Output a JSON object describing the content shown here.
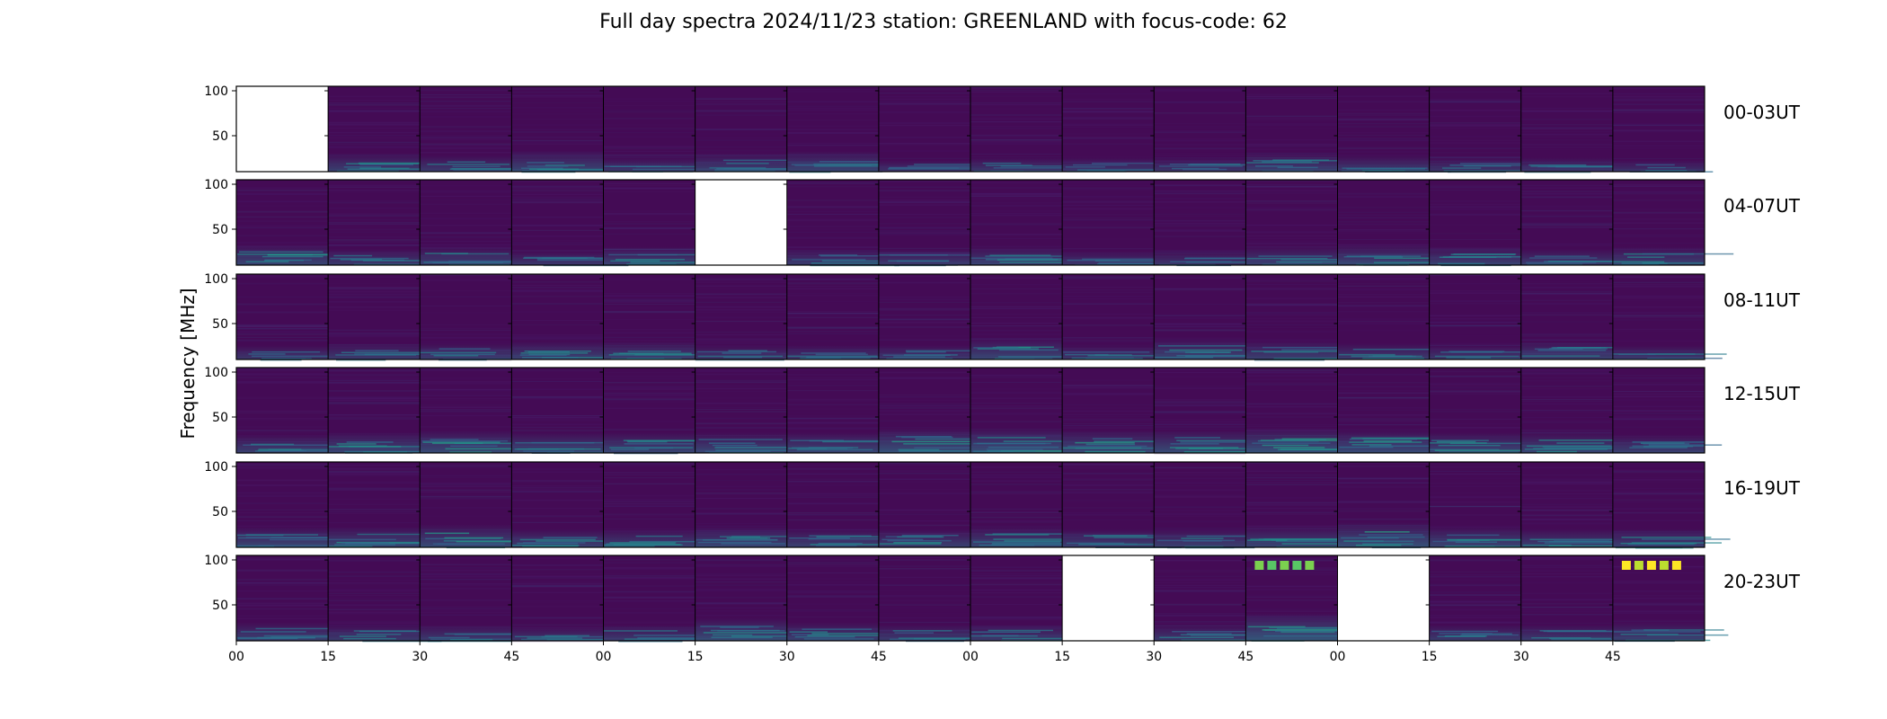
{
  "chart_data": {
    "type": "heatmap",
    "title": "Full day spectra 2024/11/23 station: GREENLAND with focus-code: 62",
    "ylabel": "Frequency [MHz]",
    "xlabel": "",
    "ylim": [
      10,
      105
    ],
    "y_ticks": [
      50,
      100
    ],
    "x_tick_labels": [
      "00",
      "15",
      "30",
      "45",
      "00",
      "15",
      "30",
      "45",
      "00",
      "15",
      "30",
      "45",
      "00",
      "15",
      "30",
      "45"
    ],
    "colormap": "viridis",
    "colors": {
      "background": "#440b55",
      "low": "#461a6e",
      "mid": "#2c7f8e",
      "high": "#b8de29"
    },
    "segments_per_row": 16,
    "segment_minutes": 15,
    "rows": [
      {
        "label": "00-03UT",
        "missing": [
          0
        ],
        "band_intensity": [
          0.0,
          0.5,
          0.4,
          0.6,
          0.3,
          0.5,
          0.6,
          0.2,
          0.3,
          0.3,
          0.3,
          0.5,
          0.4,
          0.3,
          0.3,
          0.2
        ]
      },
      {
        "label": "04-07UT",
        "missing": [
          5
        ],
        "band_intensity": [
          0.6,
          0.4,
          0.5,
          0.3,
          0.5,
          0.0,
          0.4,
          0.4,
          0.5,
          0.3,
          0.3,
          0.5,
          0.6,
          0.5,
          0.4,
          0.5
        ]
      },
      {
        "label": "08-11UT",
        "missing": [],
        "band_intensity": [
          0.3,
          0.4,
          0.4,
          0.5,
          0.5,
          0.3,
          0.3,
          0.3,
          0.6,
          0.3,
          0.6,
          0.5,
          0.4,
          0.3,
          0.5,
          0.3
        ]
      },
      {
        "label": "12-15UT",
        "missing": [],
        "band_intensity": [
          0.5,
          0.6,
          0.7,
          0.6,
          0.6,
          0.6,
          0.6,
          0.8,
          0.8,
          0.7,
          0.7,
          0.8,
          0.7,
          0.6,
          0.6,
          0.5
        ]
      },
      {
        "label": "16-19UT",
        "missing": [],
        "band_intensity": [
          0.6,
          0.6,
          0.7,
          0.5,
          0.5,
          0.6,
          0.5,
          0.5,
          0.6,
          0.5,
          0.5,
          0.6,
          0.8,
          0.6,
          0.5,
          0.5
        ]
      },
      {
        "label": "20-23UT",
        "missing": [
          9,
          12
        ],
        "band_intensity": [
          0.5,
          0.4,
          0.4,
          0.3,
          0.4,
          0.7,
          0.5,
          0.4,
          0.4,
          0.0,
          0.4,
          0.9,
          0.0,
          0.4,
          0.4,
          0.5
        ]
      }
    ],
    "hotspots": [
      {
        "row": 5,
        "segment": 11,
        "freq_mhz": 94,
        "intensity": 0.6
      },
      {
        "row": 5,
        "segment": 15,
        "freq_mhz": 94,
        "intensity": 1.0
      }
    ]
  }
}
